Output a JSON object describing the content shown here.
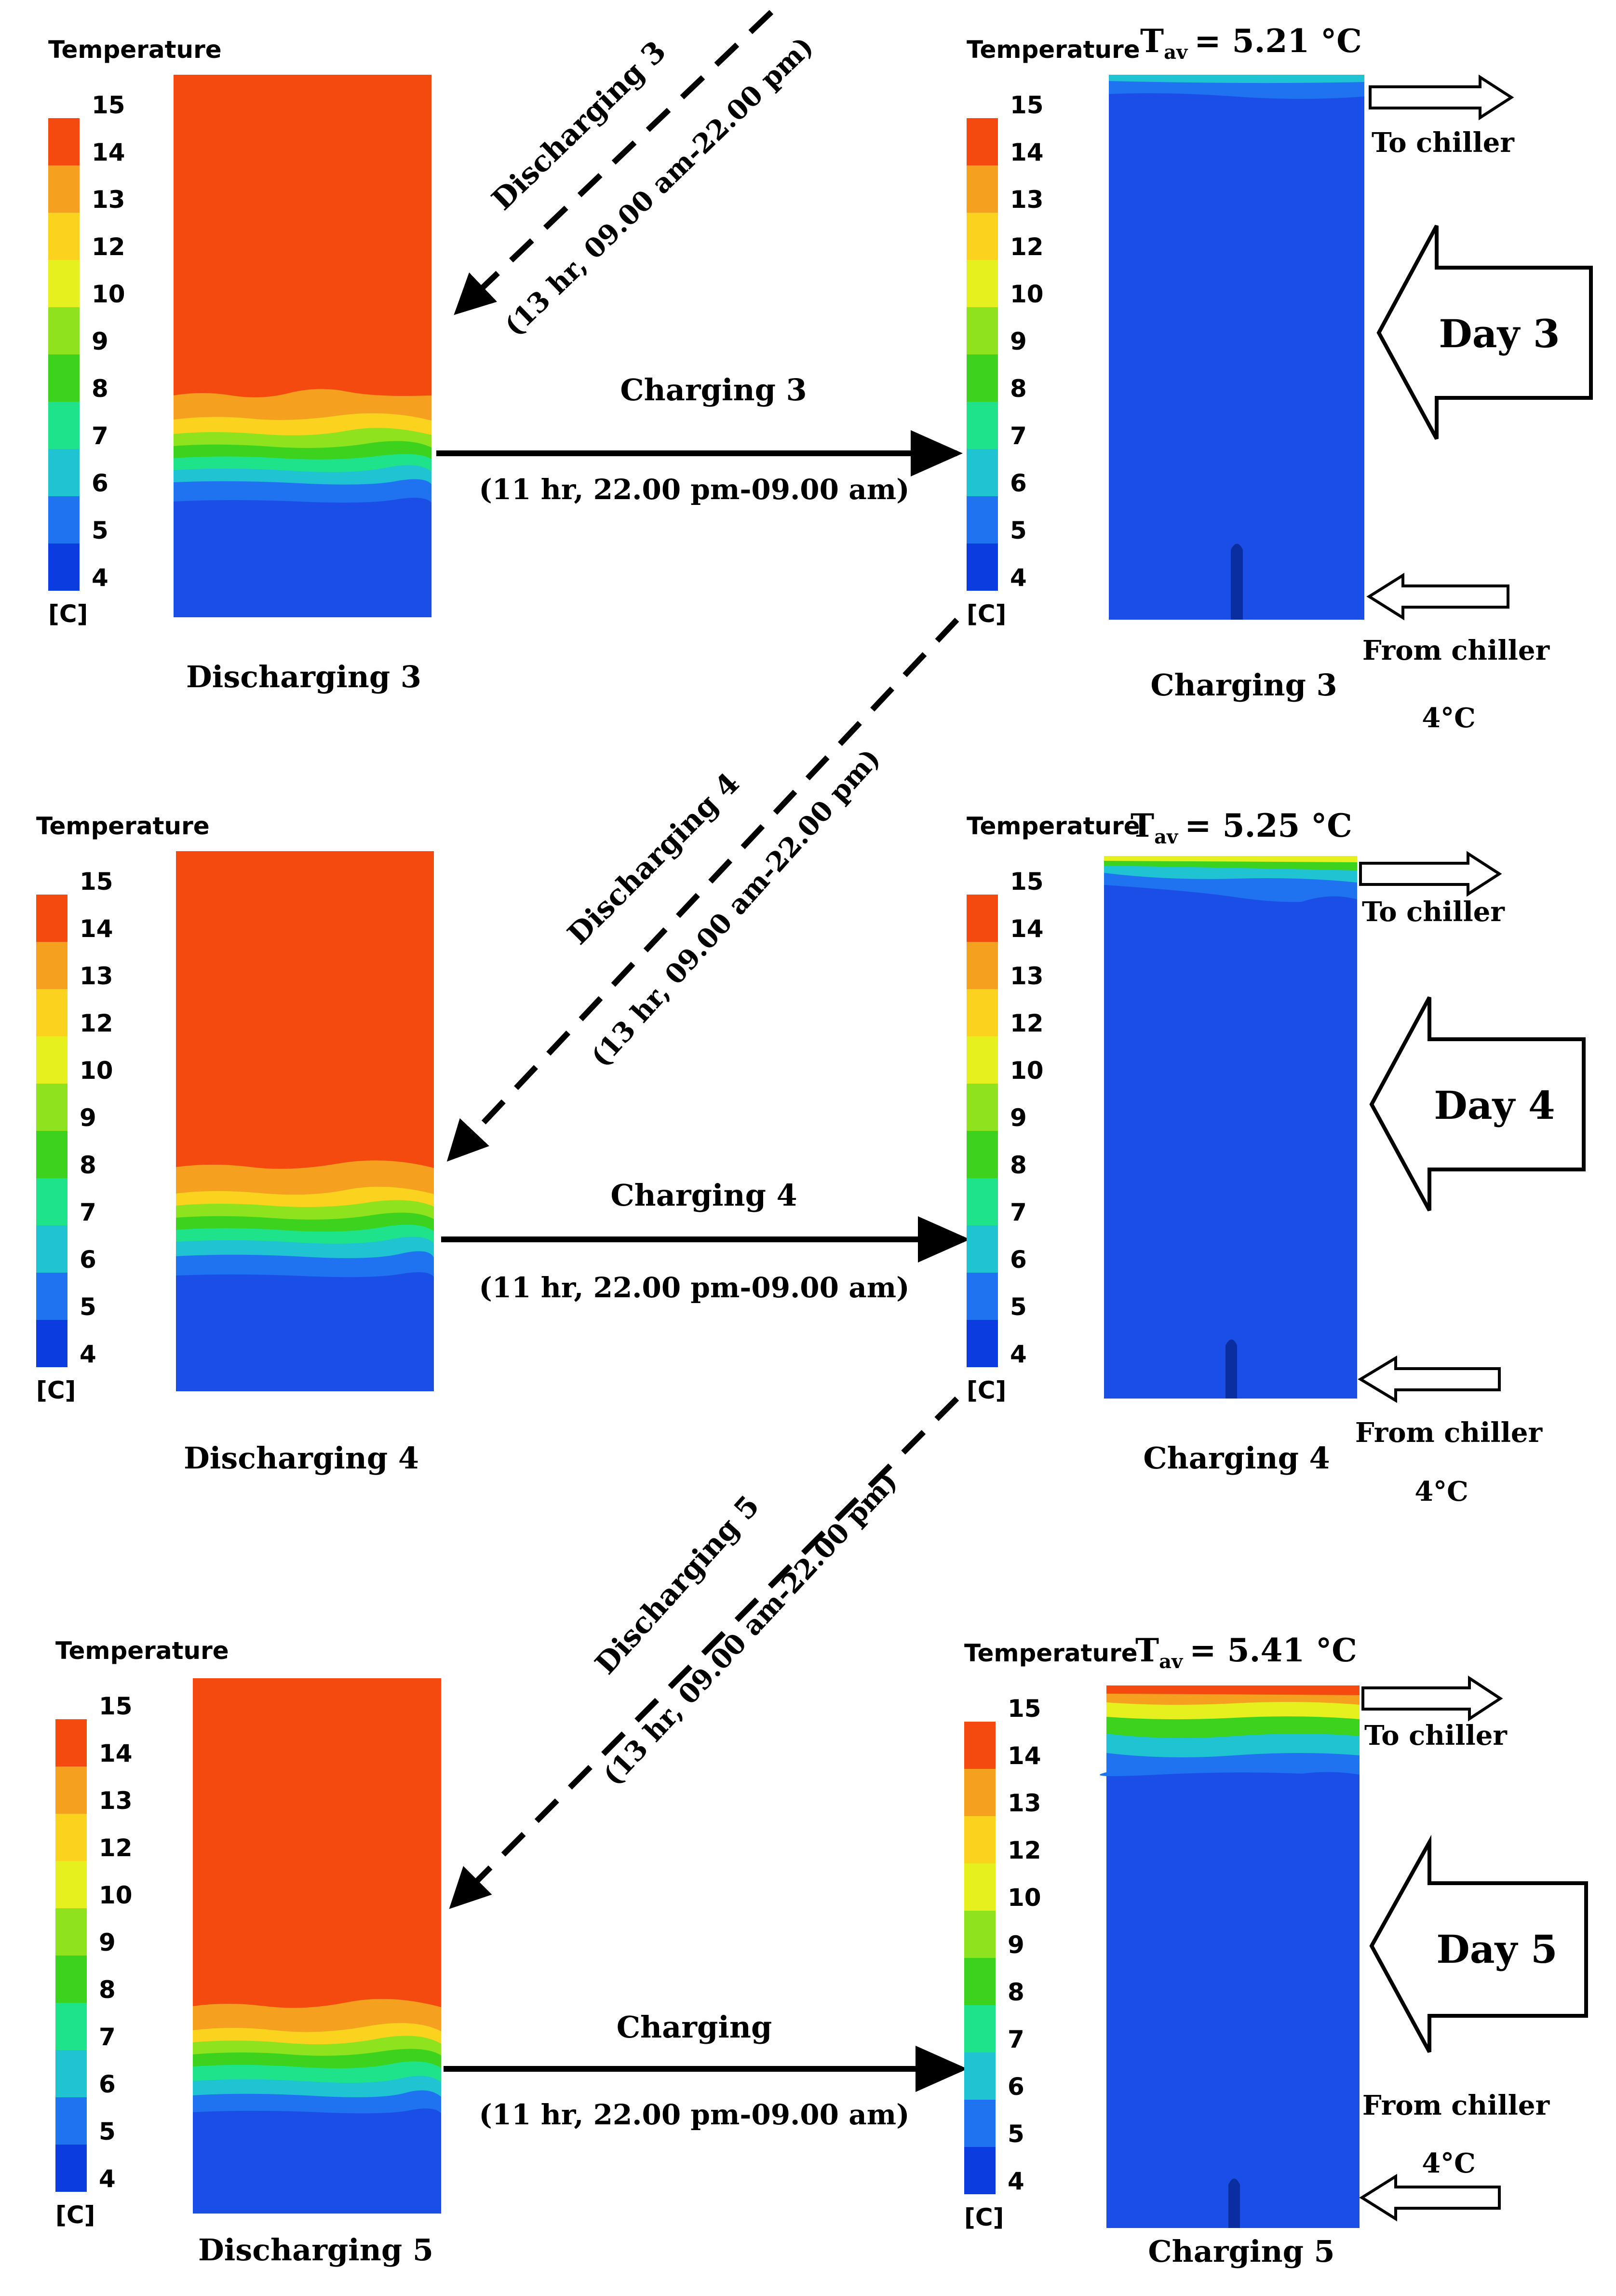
{
  "colors": {
    "levels": [
      "#0000b4",
      "#0a3ce0",
      "#1f72f0",
      "#1fc3d2",
      "#1fe38a",
      "#3cd21e",
      "#8fe31e",
      "#e6f01e",
      "#fbd21e",
      "#f5a01e",
      "#f54a0f"
    ],
    "tank_hot": "#f54a0f",
    "tank_cold": "#1a4ee6",
    "ink": "#000000"
  },
  "legend": {
    "title": "Temperature",
    "unit": "[C]",
    "ticks": [
      "15",
      "14",
      "13",
      "12",
      "10",
      "9",
      "8",
      "7",
      "6",
      "5",
      "4"
    ]
  },
  "rows": [
    {
      "day_label": "Day 3",
      "discharge_caption": "Discharging 3",
      "charge_caption": "Charging 3",
      "arrow_title": "Charging 3",
      "arrow_time": "(11 hr, 22.00 pm-09.00 am)",
      "t_av": "= 5.21 °C",
      "to_chiller": "To chiller",
      "from_chiller": "From chiller",
      "inlet_temp": "4°C",
      "discharge_title": "Discharging 3",
      "discharge_time": "(13 hr, 09.00 am-22.00 pm)"
    },
    {
      "day_label": "Day 4",
      "discharge_caption": "Discharging 4",
      "charge_caption": "Charging 4",
      "arrow_title": "Charging 4",
      "arrow_time": "(11 hr, 22.00 pm-09.00 am)",
      "t_av": "= 5.25 °C",
      "to_chiller": "To chiller",
      "from_chiller": "From chiller",
      "inlet_temp": "4°C",
      "discharge_title": "Discharging 4",
      "discharge_time": "(13 hr, 09.00 am-22.00 pm)"
    },
    {
      "day_label": "Day 5",
      "discharge_caption": "Discharging 5",
      "charge_caption": "Charging 5",
      "arrow_title": "Charging",
      "arrow_time": "(11 hr, 22.00 pm-09.00 am)",
      "t_av": "= 5.41 °C",
      "to_chiller": "To chiller",
      "from_chiller": "From chiller",
      "inlet_temp": "4°C",
      "discharge_title": "Discharging 5",
      "discharge_time": "(13 hr, 09.00 am-22.00 pm)"
    }
  ],
  "t_av_symbol": "T",
  "t_av_subscript": "av"
}
